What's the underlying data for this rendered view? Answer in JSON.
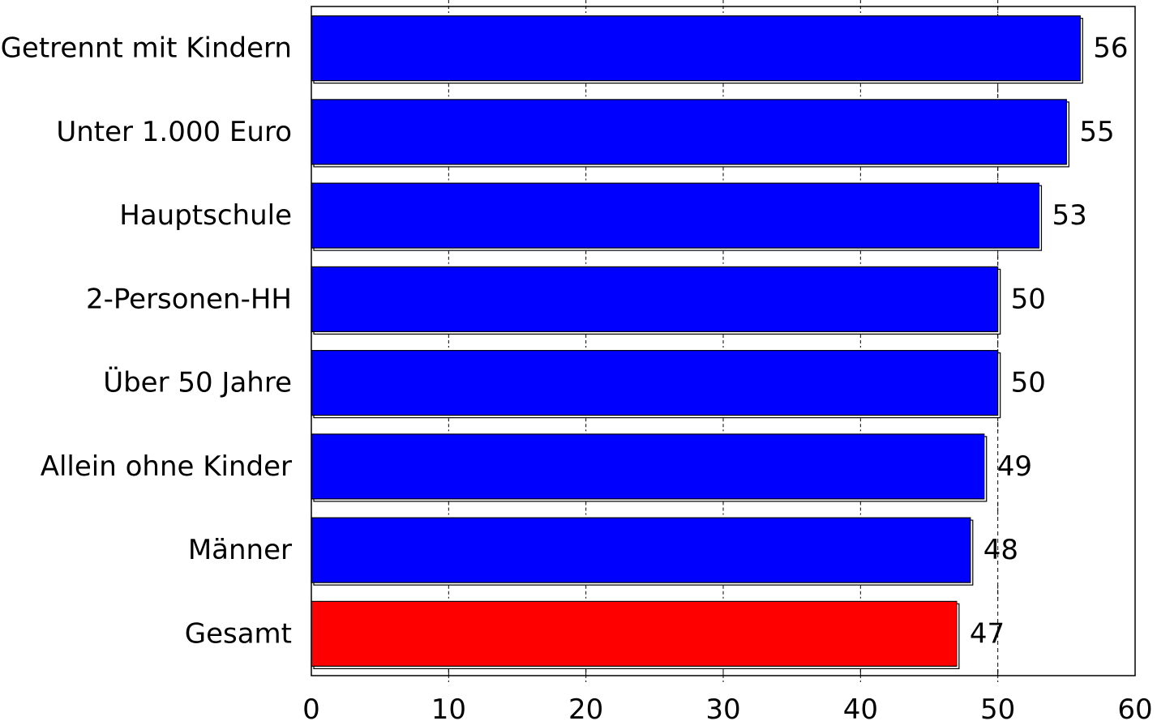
{
  "chart_data": {
    "type": "bar",
    "orientation": "horizontal",
    "categories": [
      "Getrennt mit Kindern",
      "Unter 1.000 Euro",
      "Hauptschule",
      "2-Personen-HH",
      "Über 50 Jahre",
      "Allein ohne Kinder",
      "Männer",
      "Gesamt"
    ],
    "values": [
      56,
      55,
      53,
      50,
      50,
      49,
      48,
      47
    ],
    "value_labels": [
      "56",
      "55",
      "53",
      "50",
      "50",
      "49",
      "48",
      "47"
    ],
    "bar_colors": [
      "#0000ff",
      "#0000ff",
      "#0000ff",
      "#0000ff",
      "#0000ff",
      "#0000ff",
      "#0000ff",
      "#ff0000"
    ],
    "xlim": [
      0,
      60
    ],
    "xticks": [
      0,
      10,
      20,
      30,
      40,
      50,
      60
    ],
    "xtick_labels": [
      "0",
      "10",
      "20",
      "30",
      "40",
      "50",
      "60"
    ],
    "reference_line": 50,
    "grid": "dashed vertical at ticks",
    "title": "",
    "xlabel": "",
    "ylabel": ""
  }
}
